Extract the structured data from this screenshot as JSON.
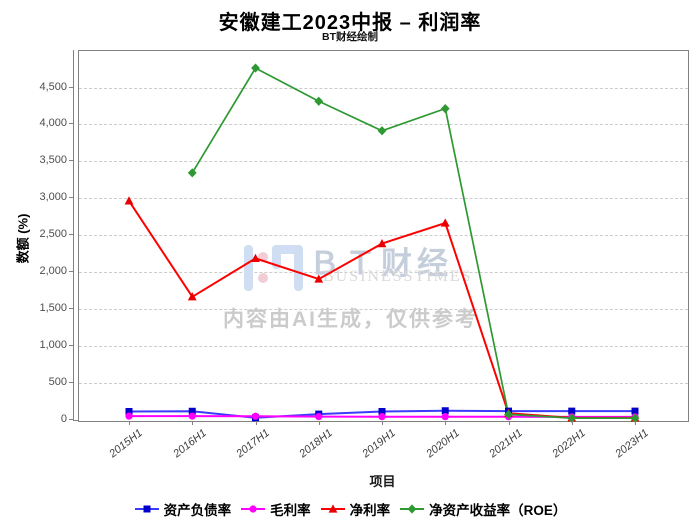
{
  "title": "安徽建工2023中报 – 利润率",
  "subtitle": "BT财经绘制",
  "watermark": {
    "brand_cn": "ＢＴ财经",
    "brand_en": "BUSINESSTIMES",
    "disclaimer": "内容由AI生成，仅供参考"
  },
  "chart_data": {
    "type": "line",
    "title": "安徽建工2023中报 – 利润率",
    "xlabel": "项目",
    "ylabel": "数额 (%)",
    "ylim": [
      0,
      5000
    ],
    "ytick_interval": 500,
    "ytick_labels": [
      "0",
      "500",
      "1,000",
      "1,500",
      "2,000",
      "2,500",
      "3,000",
      "3,500",
      "4,000",
      "4,500"
    ],
    "grid": "horizontal-dashed",
    "legend_position": "bottom",
    "categories": [
      "2015H1",
      "2016H1",
      "2017H1",
      "2018H1",
      "2019H1",
      "2020H1",
      "2021H1",
      "2022H1",
      "2023H1"
    ],
    "series": [
      {
        "name": "资产负债率",
        "marker": "square",
        "line_color": "#3b3bff",
        "marker_color": "#0000cc",
        "values": [
          95,
          98,
          10,
          60,
          95,
          105,
          100,
          100,
          100
        ]
      },
      {
        "name": "毛利率",
        "marker": "circle",
        "line_color": "#ff00ff",
        "marker_color": "#ff00ff",
        "values": [
          32,
          32,
          30,
          26,
          25,
          25,
          24,
          22,
          22
        ]
      },
      {
        "name": "净利率",
        "marker": "triangle",
        "line_color": "#ff0000",
        "marker_color": "#e80000",
        "values": [
          2950,
          1650,
          2170,
          1890,
          2370,
          2650,
          70,
          8,
          8
        ]
      },
      {
        "name": "净资产收益率（ROE）",
        "marker": "diamond",
        "line_color": "#2e9932",
        "marker_color": "#2e9932",
        "values": [
          null,
          3330,
          4750,
          4300,
          3900,
          4200,
          55,
          5,
          5
        ]
      }
    ]
  }
}
